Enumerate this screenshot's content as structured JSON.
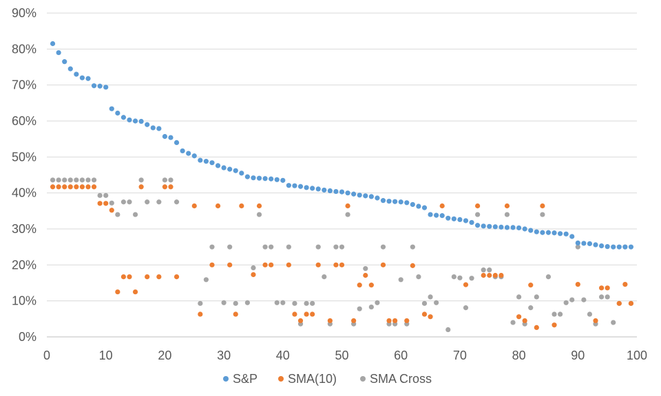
{
  "chart_data": {
    "type": "scatter",
    "title": "",
    "xlabel": "",
    "ylabel": "",
    "xlim": [
      0,
      100
    ],
    "ylim": [
      0,
      90
    ],
    "x_ticks": [
      "0",
      "10",
      "20",
      "30",
      "40",
      "50",
      "60",
      "70",
      "80",
      "90",
      "100"
    ],
    "y_ticks": [
      "0%",
      "10%",
      "20%",
      "30%",
      "40%",
      "50%",
      "60%",
      "70%",
      "80%",
      "90%"
    ],
    "grid": true,
    "legend_position": "bottom",
    "series": [
      {
        "name": "S&P",
        "color": "#5B9BD5",
        "points": [
          [
            1,
            81.5
          ],
          [
            2,
            79
          ],
          [
            3,
            76.5
          ],
          [
            4,
            74.5
          ],
          [
            5,
            73
          ],
          [
            6,
            72
          ],
          [
            7,
            71.8
          ],
          [
            8,
            69.8
          ],
          [
            9,
            69.7
          ],
          [
            10,
            69.4
          ],
          [
            11,
            63.4
          ],
          [
            12,
            62.2
          ],
          [
            13,
            61
          ],
          [
            14,
            60.3
          ],
          [
            15,
            60
          ],
          [
            16,
            59.9
          ],
          [
            17,
            59
          ],
          [
            18,
            58.1
          ],
          [
            19,
            57.9
          ],
          [
            20,
            55.7
          ],
          [
            21,
            55.4
          ],
          [
            22,
            54
          ],
          [
            23,
            51.7
          ],
          [
            24,
            51
          ],
          [
            25,
            50.3
          ],
          [
            26,
            49.1
          ],
          [
            27,
            48.8
          ],
          [
            28,
            48.4
          ],
          [
            29,
            47.6
          ],
          [
            30,
            47
          ],
          [
            31,
            46.6
          ],
          [
            32,
            46.2
          ],
          [
            33,
            45.5
          ],
          [
            34,
            44.5
          ],
          [
            35,
            44.2
          ],
          [
            36,
            44.1
          ],
          [
            37,
            44
          ],
          [
            38,
            43.9
          ],
          [
            39,
            43.7
          ],
          [
            40,
            43.5
          ],
          [
            41,
            42.1
          ],
          [
            42,
            42
          ],
          [
            43,
            41.8
          ],
          [
            44,
            41.5
          ],
          [
            45,
            41.3
          ],
          [
            46,
            41.1
          ],
          [
            47,
            40.8
          ],
          [
            48,
            40.6
          ],
          [
            49,
            40.4
          ],
          [
            50,
            40.3
          ],
          [
            51,
            40
          ],
          [
            52,
            39.7
          ],
          [
            53,
            39.4
          ],
          [
            54,
            39.2
          ],
          [
            55,
            39
          ],
          [
            56,
            38.6
          ],
          [
            57,
            37.9
          ],
          [
            58,
            37.7
          ],
          [
            59,
            37.6
          ],
          [
            60,
            37.5
          ],
          [
            61,
            37.3
          ],
          [
            62,
            36.8
          ],
          [
            63,
            36.3
          ],
          [
            64,
            35.9
          ],
          [
            65,
            34
          ],
          [
            66,
            33.8
          ],
          [
            67,
            33.7
          ],
          [
            68,
            33
          ],
          [
            69,
            32.8
          ],
          [
            70,
            32.6
          ],
          [
            71,
            32.3
          ],
          [
            72,
            31.8
          ],
          [
            73,
            31
          ],
          [
            74,
            30.8
          ],
          [
            75,
            30.7
          ],
          [
            76,
            30.6
          ],
          [
            77,
            30.5
          ],
          [
            78,
            30.4
          ],
          [
            79,
            30.4
          ],
          [
            80,
            30.3
          ],
          [
            81,
            30
          ],
          [
            82,
            29.6
          ],
          [
            83,
            29.2
          ],
          [
            84,
            29
          ],
          [
            85,
            29
          ],
          [
            86,
            28.9
          ],
          [
            87,
            28.7
          ],
          [
            88,
            28.6
          ],
          [
            89,
            27.9
          ],
          [
            90,
            26.1
          ],
          [
            91,
            26
          ],
          [
            92,
            25.9
          ],
          [
            93,
            25.6
          ],
          [
            94,
            25.3
          ],
          [
            95,
            25.1
          ],
          [
            96,
            25
          ],
          [
            97,
            25
          ],
          [
            98,
            25
          ],
          [
            99,
            25
          ]
        ]
      },
      {
        "name": "SMA(10)",
        "color": "#ED7D31",
        "points": [
          [
            1,
            41.7
          ],
          [
            2,
            41.7
          ],
          [
            3,
            41.7
          ],
          [
            4,
            41.7
          ],
          [
            5,
            41.7
          ],
          [
            6,
            41.7
          ],
          [
            7,
            41.7
          ],
          [
            8,
            41.7
          ],
          [
            9,
            37.1
          ],
          [
            10,
            37.1
          ],
          [
            11,
            35.2
          ],
          [
            12,
            12.5
          ],
          [
            13,
            16.7
          ],
          [
            14,
            16.7
          ],
          [
            15,
            12.5
          ],
          [
            16,
            41.7
          ],
          [
            17,
            16.7
          ],
          [
            19,
            16.7
          ],
          [
            20,
            41.7
          ],
          [
            21,
            41.7
          ],
          [
            22,
            16.7
          ],
          [
            25,
            36.4
          ],
          [
            26,
            6.3
          ],
          [
            28,
            20
          ],
          [
            29,
            36.4
          ],
          [
            31,
            20
          ],
          [
            32,
            6.3
          ],
          [
            33,
            36.4
          ],
          [
            35,
            17.3
          ],
          [
            36,
            36.4
          ],
          [
            37,
            20
          ],
          [
            38,
            20
          ],
          [
            41,
            20
          ],
          [
            42,
            6.3
          ],
          [
            43,
            4.5
          ],
          [
            44,
            6.3
          ],
          [
            45,
            6.3
          ],
          [
            46,
            20
          ],
          [
            48,
            4.5
          ],
          [
            49,
            20
          ],
          [
            50,
            20
          ],
          [
            51,
            36.4
          ],
          [
            52,
            4.5
          ],
          [
            53,
            14.4
          ],
          [
            54,
            17.1
          ],
          [
            55,
            14.4
          ],
          [
            57,
            20
          ],
          [
            58,
            4.5
          ],
          [
            59,
            4.5
          ],
          [
            61,
            4.5
          ],
          [
            62,
            19.8
          ],
          [
            64,
            6.3
          ],
          [
            65,
            5.6
          ],
          [
            67,
            36.4
          ],
          [
            71,
            14.5
          ],
          [
            73,
            36.4
          ],
          [
            74,
            17.1
          ],
          [
            75,
            17.1
          ],
          [
            76,
            17.1
          ],
          [
            77,
            17.1
          ],
          [
            78,
            36.4
          ],
          [
            80,
            5.6
          ],
          [
            81,
            4.5
          ],
          [
            82,
            14.4
          ],
          [
            83,
            2.6
          ],
          [
            84,
            36.4
          ],
          [
            86,
            3.3
          ],
          [
            90,
            14.6
          ],
          [
            93,
            4.5
          ],
          [
            94,
            13.6
          ],
          [
            95,
            13.6
          ],
          [
            97,
            9.3
          ],
          [
            98,
            14.6
          ],
          [
            99,
            9.3
          ]
        ]
      },
      {
        "name": "SMA Cross",
        "color": "#A5A5A5",
        "points": [
          [
            1,
            43.6
          ],
          [
            2,
            43.6
          ],
          [
            3,
            43.6
          ],
          [
            4,
            43.6
          ],
          [
            5,
            43.6
          ],
          [
            6,
            43.6
          ],
          [
            7,
            43.6
          ],
          [
            8,
            43.6
          ],
          [
            9,
            39.3
          ],
          [
            10,
            39.3
          ],
          [
            11,
            37.2
          ],
          [
            12,
            34
          ],
          [
            13,
            37.5
          ],
          [
            14,
            37.5
          ],
          [
            15,
            34
          ],
          [
            16,
            43.6
          ],
          [
            17,
            37.5
          ],
          [
            19,
            37.5
          ],
          [
            20,
            43.6
          ],
          [
            21,
            43.6
          ],
          [
            22,
            37.5
          ],
          [
            26,
            9.3
          ],
          [
            27,
            15.9
          ],
          [
            28,
            25
          ],
          [
            30,
            9.5
          ],
          [
            31,
            25
          ],
          [
            32,
            9.3
          ],
          [
            34,
            9.5
          ],
          [
            35,
            19.2
          ],
          [
            36,
            34
          ],
          [
            37,
            25
          ],
          [
            38,
            25
          ],
          [
            39,
            9.5
          ],
          [
            40,
            9.5
          ],
          [
            41,
            25
          ],
          [
            42,
            9.3
          ],
          [
            43,
            3.6
          ],
          [
            44,
            9.3
          ],
          [
            45,
            9.3
          ],
          [
            46,
            25
          ],
          [
            47,
            16.7
          ],
          [
            48,
            3.6
          ],
          [
            49,
            25
          ],
          [
            50,
            25
          ],
          [
            51,
            34
          ],
          [
            52,
            3.6
          ],
          [
            53,
            7.8
          ],
          [
            54,
            19
          ],
          [
            55,
            8.3
          ],
          [
            56,
            9.5
          ],
          [
            57,
            25
          ],
          [
            58,
            3.6
          ],
          [
            59,
            3.6
          ],
          [
            60,
            15.9
          ],
          [
            61,
            3.6
          ],
          [
            62,
            25
          ],
          [
            63,
            16.7
          ],
          [
            64,
            9.3
          ],
          [
            65,
            11.1
          ],
          [
            66,
            9.5
          ],
          [
            68,
            2
          ],
          [
            69,
            16.7
          ],
          [
            70,
            16.4
          ],
          [
            71,
            8.1
          ],
          [
            72,
            16.3
          ],
          [
            73,
            34
          ],
          [
            74,
            18.6
          ],
          [
            75,
            18.6
          ],
          [
            76,
            16.7
          ],
          [
            77,
            16.7
          ],
          [
            78,
            34
          ],
          [
            79,
            4
          ],
          [
            80,
            11.1
          ],
          [
            81,
            3.6
          ],
          [
            82,
            8.1
          ],
          [
            83,
            11.1
          ],
          [
            84,
            34
          ],
          [
            85,
            16.7
          ],
          [
            86,
            6.3
          ],
          [
            87,
            6.3
          ],
          [
            88,
            9.5
          ],
          [
            89,
            10.3
          ],
          [
            90,
            25
          ],
          [
            91,
            10.3
          ],
          [
            92,
            6.3
          ],
          [
            93,
            3.6
          ],
          [
            94,
            11.1
          ],
          [
            95,
            11.1
          ],
          [
            96,
            4
          ],
          [
            97,
            9.3
          ],
          [
            98,
            25
          ],
          [
            99,
            9.3
          ]
        ]
      }
    ]
  }
}
